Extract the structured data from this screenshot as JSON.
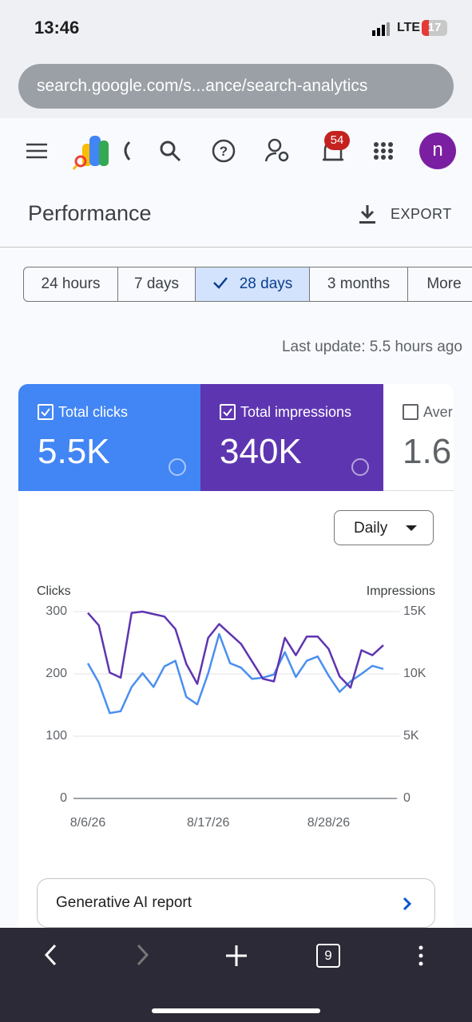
{
  "status_bar": {
    "time": "13:46",
    "network": "LTE",
    "battery": "17"
  },
  "address_bar": {
    "url": "search.google.com/s...ance/search-analytics"
  },
  "toolbar": {
    "notifications": "54",
    "avatar": "n"
  },
  "header": {
    "title": "Performance",
    "export": "EXPORT"
  },
  "date_ranges": {
    "options": [
      "24 hours",
      "7 days",
      "28 days",
      "3 months",
      "More"
    ],
    "selected": 2
  },
  "last_update": "Last update: 5.5 hours ago",
  "metrics": [
    {
      "label": "Total clicks",
      "value": "5.5K",
      "checked": true,
      "color": "#4285f4"
    },
    {
      "label": "Total impressions",
      "value": "340K",
      "checked": true,
      "color": "#5e35b1"
    },
    {
      "label": "Aver",
      "value": "1.6",
      "checked": false,
      "color": "#ffffff"
    }
  ],
  "chart_data": {
    "type": "line",
    "interval": "Daily",
    "ylabel": "Clicks",
    "y2label": "Impressions",
    "categories": [
      "8/6/26",
      null,
      null,
      null,
      null,
      null,
      null,
      null,
      null,
      null,
      null,
      "8/17/26",
      null,
      null,
      null,
      null,
      null,
      null,
      null,
      null,
      null,
      null,
      "8/28/26",
      null,
      null,
      null,
      null,
      null
    ],
    "series": [
      {
        "name": "Clicks",
        "color": "#4a8ff0",
        "values": [
          217,
          186,
          137,
          140,
          179,
          201,
          179,
          212,
          221,
          163,
          151,
          201,
          264,
          217,
          210,
          192,
          194,
          199,
          235,
          195,
          221,
          228,
          197,
          171,
          188,
          200,
          213,
          208
        ]
      },
      {
        "name": "Impressions",
        "color": "#5e35b1",
        "axis": "y2",
        "values": [
          14900,
          13900,
          10100,
          9700,
          14900,
          15000,
          14800,
          14600,
          13600,
          10800,
          9200,
          12900,
          14000,
          13200,
          12400,
          11000,
          9600,
          9400,
          12900,
          11500,
          13000,
          13000,
          12000,
          9800,
          8900,
          11900,
          11500,
          12300
        ]
      }
    ],
    "ylim": [
      0,
      300
    ],
    "yticks": [
      0,
      100,
      200,
      300
    ],
    "y2lim": [
      0,
      15000
    ],
    "y2ticks": [
      0,
      {
        "value": 5000,
        "label": "5K"
      },
      {
        "value": 10000,
        "label": "10K"
      },
      {
        "value": 15000,
        "label": "15K"
      }
    ],
    "grid": true
  },
  "report_link": "Generative AI report",
  "nav": {
    "tabs": "9"
  }
}
